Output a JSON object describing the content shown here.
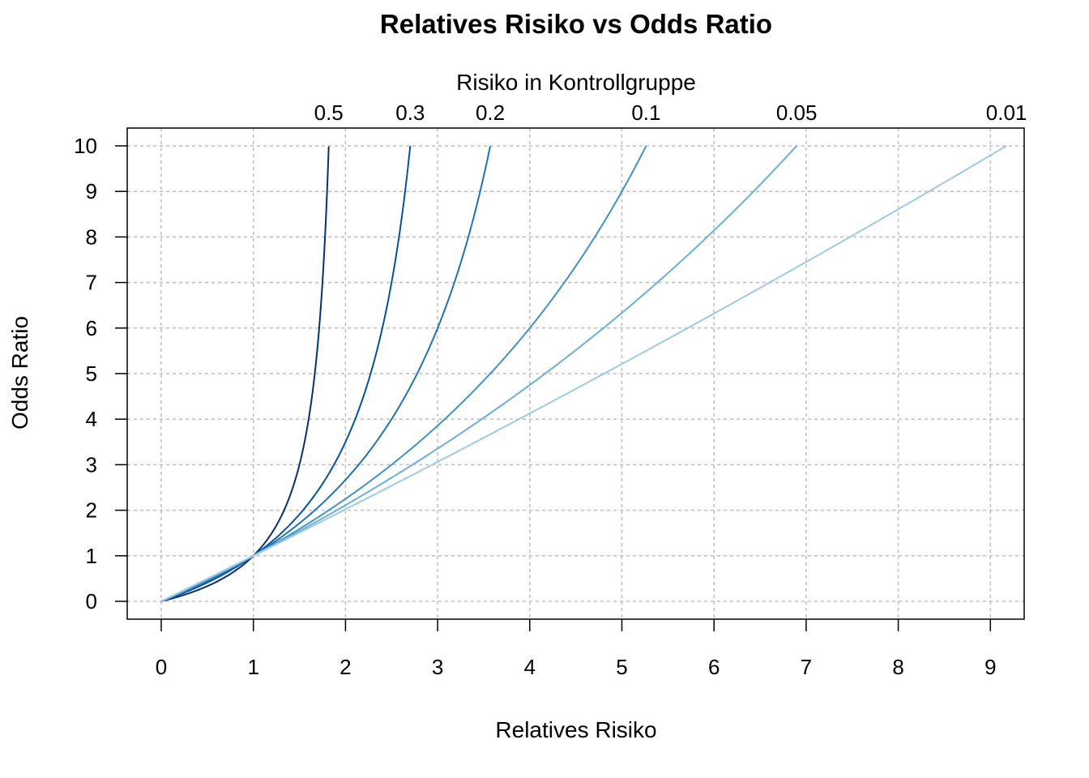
{
  "chart_data": {
    "type": "line",
    "title": "Relatives Risiko vs Odds Ratio",
    "xlabel": "Relatives Risiko",
    "ylabel": "Odds Ratio",
    "top_axis_label": "Risiko in Kontrollgruppe",
    "xlim": [
      0,
      9.2
    ],
    "ylim": [
      0,
      10
    ],
    "x_ticks": [
      0,
      1,
      2,
      3,
      4,
      5,
      6,
      7,
      8,
      9
    ],
    "y_ticks": [
      0,
      1,
      2,
      3,
      4,
      5,
      6,
      7,
      8,
      9,
      10
    ],
    "grid": true,
    "series": [
      {
        "name": "0.5",
        "control_risk": 0.5,
        "color": "#08306b",
        "x_at_y10": 1.818
      },
      {
        "name": "0.3",
        "control_risk": 0.3,
        "color": "#08519c",
        "x_at_y10": 2.703
      },
      {
        "name": "0.2",
        "control_risk": 0.2,
        "color": "#2171b5",
        "x_at_y10": 3.571
      },
      {
        "name": "0.1",
        "control_risk": 0.1,
        "color": "#4292c6",
        "x_at_y10": 5.263
      },
      {
        "name": "0.05",
        "control_risk": 0.05,
        "color": "#6baed6",
        "x_at_y10": 6.897
      },
      {
        "name": "0.01",
        "control_risk": 0.01,
        "color": "#9ecae1",
        "x_at_y10": 9.174
      }
    ]
  }
}
